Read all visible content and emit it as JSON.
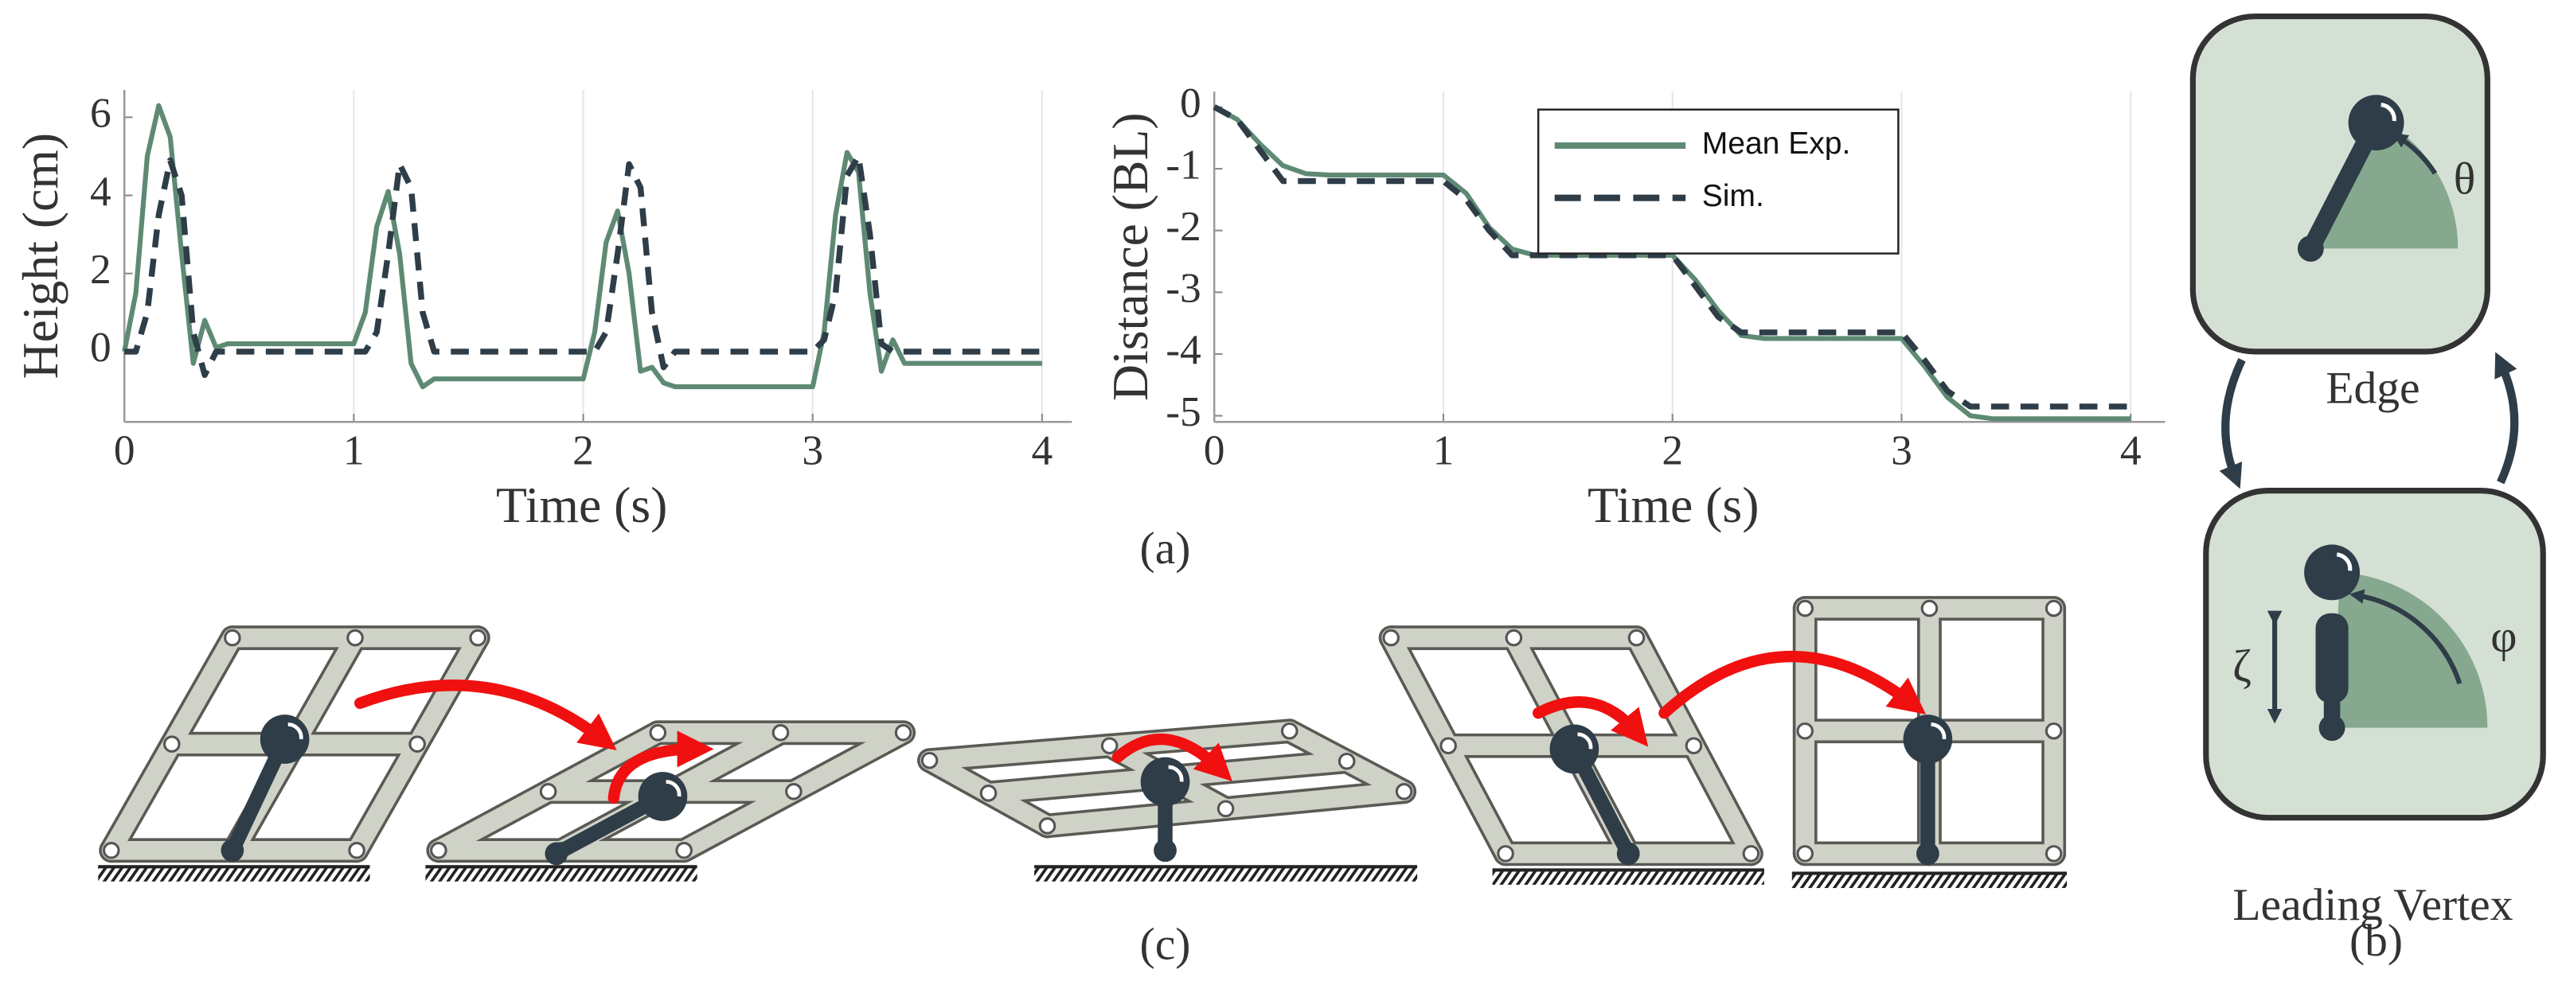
{
  "chart_data": [
    {
      "type": "line",
      "xlabel": "Time (s)",
      "ylabel": "Height (cm)",
      "xlim": [
        0,
        4.13
      ],
      "ylim": [
        -1.8,
        6.7
      ],
      "xticks": [
        0,
        1,
        2,
        3,
        4
      ],
      "yticks": [
        0,
        2,
        4,
        6
      ],
      "grid": "x",
      "x": [
        0,
        0.05,
        0.1,
        0.15,
        0.2,
        0.25,
        0.3,
        0.35,
        0.4,
        0.45,
        0.5,
        0.55,
        0.6,
        0.65,
        0.7,
        0.75,
        0.8,
        0.85,
        0.9,
        0.95,
        1,
        1.05,
        1.1,
        1.15,
        1.2,
        1.25,
        1.3,
        1.35,
        1.4,
        1.45,
        1.5,
        1.55,
        1.6,
        1.65,
        1.7,
        1.75,
        1.8,
        1.85,
        1.9,
        1.95,
        2,
        2.05,
        2.1,
        2.15,
        2.2,
        2.25,
        2.3,
        2.35,
        2.4,
        2.45,
        2.5,
        2.55,
        2.6,
        2.65,
        2.7,
        2.75,
        2.8,
        2.85,
        2.9,
        2.95,
        3,
        3.05,
        3.1,
        3.15,
        3.2,
        3.25,
        3.3,
        3.35,
        3.4,
        3.45,
        3.5,
        3.55,
        3.6,
        3.65,
        3.7,
        3.75,
        3.8,
        3.85,
        3.9,
        3.95,
        4
      ],
      "series": [
        {
          "name": "Mean Exp.",
          "color": "#5e8a74",
          "style": "solid",
          "values": [
            0,
            1.5,
            5,
            6.3,
            5.5,
            2.5,
            -0.3,
            0.8,
            0.1,
            0.2,
            0.2,
            0.2,
            0.2,
            0.2,
            0.2,
            0.2,
            0.2,
            0.2,
            0.2,
            0.2,
            0.2,
            1.0,
            3.2,
            4.1,
            2.5,
            -0.3,
            -0.9,
            -0.7,
            -0.7,
            -0.7,
            -0.7,
            -0.7,
            -0.7,
            -0.7,
            -0.7,
            -0.7,
            -0.7,
            -0.7,
            -0.7,
            -0.7,
            -0.7,
            0.5,
            2.8,
            3.6,
            2.0,
            -0.5,
            -0.4,
            -0.8,
            -0.9,
            -0.9,
            -0.9,
            -0.9,
            -0.9,
            -0.9,
            -0.9,
            -0.9,
            -0.9,
            -0.9,
            -0.9,
            -0.9,
            -0.9,
            0.5,
            3.5,
            5.1,
            4.6,
            1.5,
            -0.5,
            0.3,
            -0.3,
            -0.3,
            -0.3,
            -0.3,
            -0.3,
            -0.3,
            -0.3,
            -0.3,
            -0.3,
            -0.3,
            -0.3,
            -0.3,
            -0.3
          ]
        },
        {
          "name": "Sim.",
          "color": "#2e3d48",
          "style": "dashed",
          "values": [
            0,
            0,
            1.0,
            3.5,
            4.9,
            4.0,
            0.5,
            -0.6,
            0,
            0,
            0,
            0,
            0,
            0,
            0,
            0,
            0,
            0,
            0,
            0,
            0,
            0,
            0.5,
            2.5,
            4.8,
            4.2,
            1.0,
            0,
            0,
            0,
            0,
            0,
            0,
            0,
            0,
            0,
            0,
            0,
            0,
            0,
            0,
            0,
            0.5,
            2.5,
            4.8,
            4.2,
            1.0,
            -0.4,
            0,
            0,
            0,
            0,
            0,
            0,
            0,
            0,
            0,
            0,
            0,
            0,
            0,
            0.3,
            1.5,
            4.5,
            5.0,
            3.0,
            0.2,
            0,
            0,
            0,
            0,
            0,
            0,
            0,
            0,
            0,
            0,
            0,
            0,
            0,
            0
          ]
        }
      ]
    },
    {
      "type": "line",
      "xlabel": "Time (s)",
      "ylabel": "Distance (BL)",
      "xlim": [
        0,
        4.15
      ],
      "ylim": [
        -5.1,
        0.25
      ],
      "xticks": [
        0,
        1,
        2,
        3,
        4
      ],
      "yticks": [
        0,
        -1,
        -2,
        -3,
        -4,
        -5
      ],
      "grid": "x",
      "legend": "top-right",
      "x": [
        0,
        0.1,
        0.2,
        0.3,
        0.4,
        0.5,
        0.6,
        0.7,
        0.8,
        0.9,
        1,
        1.1,
        1.2,
        1.3,
        1.4,
        1.5,
        1.6,
        1.7,
        1.8,
        1.9,
        2,
        2.1,
        2.2,
        2.3,
        2.4,
        2.5,
        2.6,
        2.7,
        2.8,
        2.9,
        3,
        3.1,
        3.2,
        3.3,
        3.4,
        3.5,
        3.6,
        3.7,
        3.8,
        3.9,
        4
      ],
      "series": [
        {
          "name": "Mean Exp.",
          "color": "#5e8a74",
          "style": "solid",
          "values": [
            0,
            -0.2,
            -0.6,
            -0.95,
            -1.08,
            -1.1,
            -1.1,
            -1.1,
            -1.1,
            -1.1,
            -1.1,
            -1.4,
            -1.95,
            -2.3,
            -2.4,
            -2.4,
            -2.4,
            -2.4,
            -2.4,
            -2.4,
            -2.4,
            -2.8,
            -3.3,
            -3.7,
            -3.75,
            -3.75,
            -3.75,
            -3.75,
            -3.75,
            -3.75,
            -3.75,
            -4.2,
            -4.7,
            -5.0,
            -5.05,
            -5.05,
            -5.05,
            -5.05,
            -5.05,
            -5.05,
            -5.05
          ]
        },
        {
          "name": "Sim.",
          "color": "#2e3d48",
          "style": "dashed",
          "values": [
            0,
            -0.2,
            -0.7,
            -1.2,
            -1.2,
            -1.2,
            -1.2,
            -1.2,
            -1.2,
            -1.2,
            -1.2,
            -1.5,
            -2.0,
            -2.4,
            -2.4,
            -2.4,
            -2.4,
            -2.4,
            -2.4,
            -2.4,
            -2.4,
            -2.9,
            -3.4,
            -3.65,
            -3.65,
            -3.65,
            -3.65,
            -3.65,
            -3.65,
            -3.65,
            -3.65,
            -4.1,
            -4.6,
            -4.85,
            -4.85,
            -4.85,
            -4.85,
            -4.85,
            -4.85,
            -4.85,
            -4.85
          ]
        }
      ]
    }
  ],
  "panels": {
    "a": "(a)",
    "b": "(b)",
    "c": "(c)"
  },
  "modes": {
    "edge": "Edge",
    "vertex": "Leading Vertex",
    "theta": "θ",
    "phi": "φ",
    "zeta": "ζ"
  }
}
